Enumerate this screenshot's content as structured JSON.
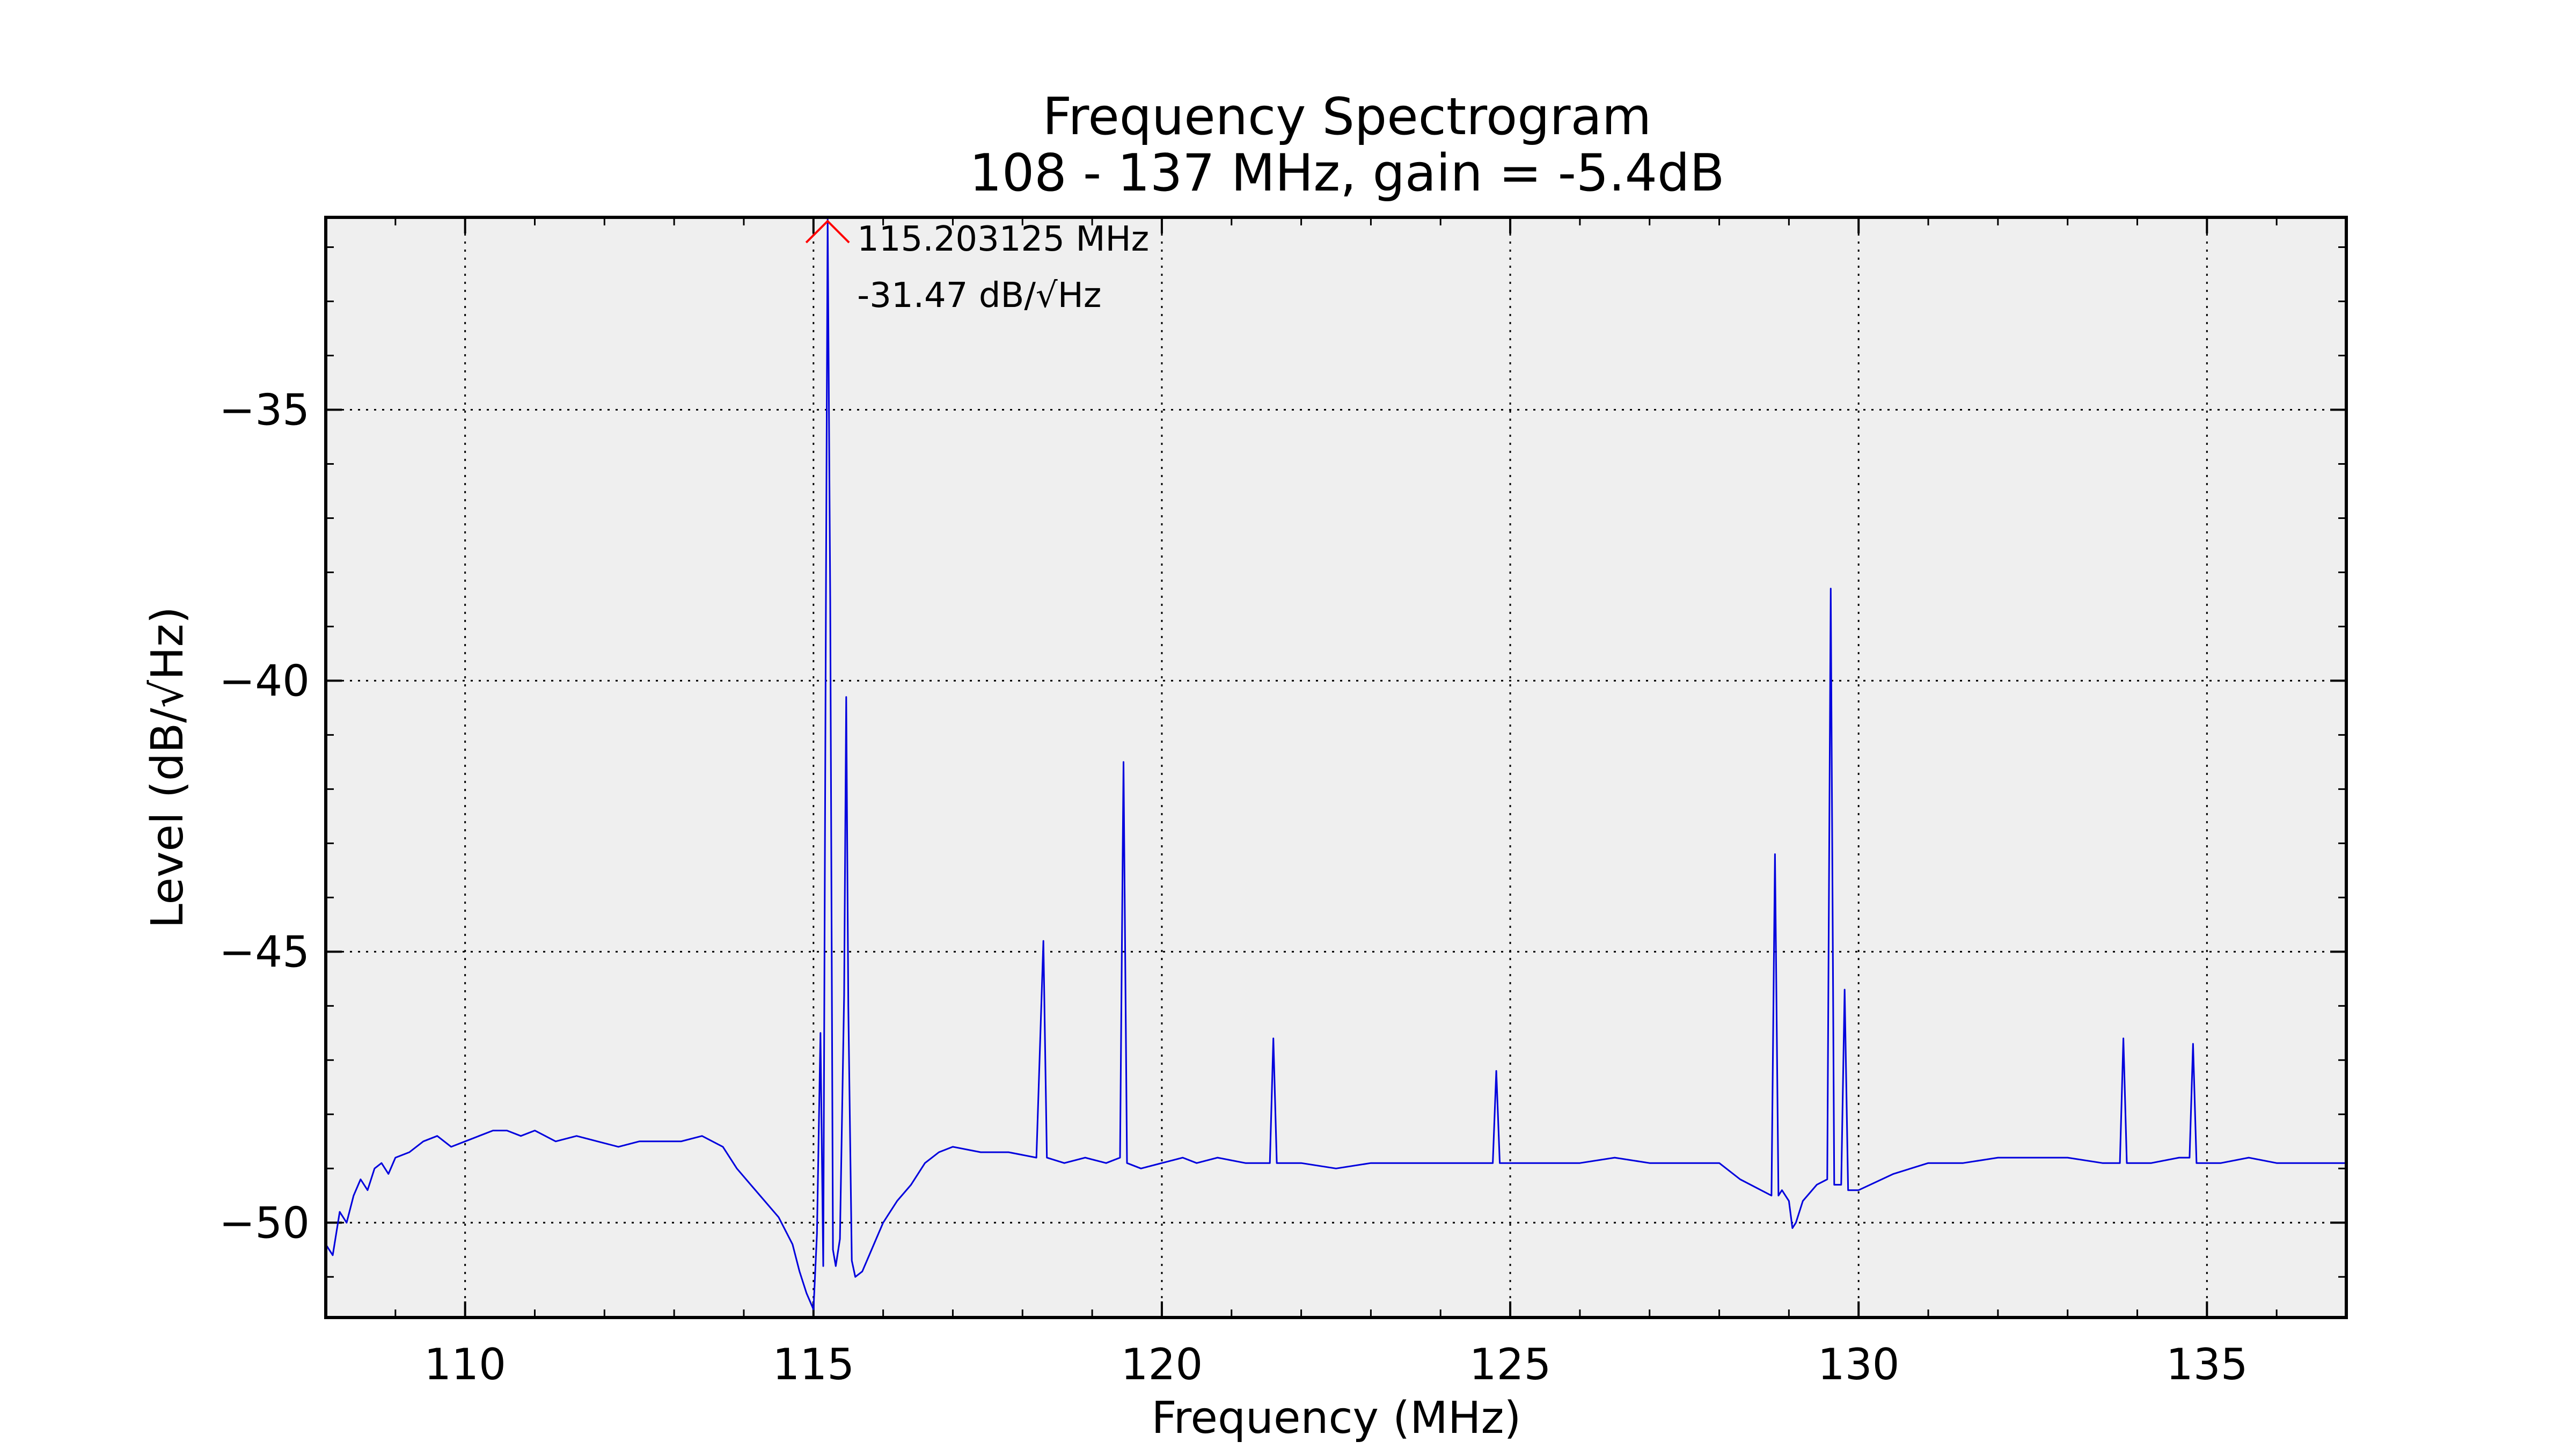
{
  "chart_data": {
    "type": "line",
    "title": "Frequency Spectrogram",
    "subtitle": "108 - 137 MHz, gain = -5.4dB",
    "xlabel": "Frequency (MHz)",
    "ylabel": "Level (dB/√Hz)",
    "xlim": [
      108,
      137
    ],
    "ylim": [
      -51.75,
      -31.45
    ],
    "xticks": [
      110,
      115,
      120,
      125,
      130,
      135
    ],
    "xtick_labels": [
      "110",
      "115",
      "120",
      "125",
      "130",
      "135"
    ],
    "yticks": [
      -35,
      -40,
      -45,
      -50
    ],
    "ytick_labels": [
      "−35",
      "−40",
      "−45",
      "−50"
    ],
    "grid": true,
    "background": "#efefef",
    "line_color": "#0000dd",
    "marker_color": "#ff0000",
    "peak_marker": {
      "x": 115.203125,
      "y": -31.47,
      "label_freq": "115.203125 MHz",
      "label_level": "-31.47 dB/√Hz"
    },
    "series": [
      {
        "points": [
          [
            108.0,
            -50.4
          ],
          [
            108.1,
            -50.6
          ],
          [
            108.2,
            -49.8
          ],
          [
            108.3,
            -50.0
          ],
          [
            108.4,
            -49.5
          ],
          [
            108.5,
            -49.2
          ],
          [
            108.6,
            -49.4
          ],
          [
            108.7,
            -49.0
          ],
          [
            108.8,
            -48.9
          ],
          [
            108.9,
            -49.1
          ],
          [
            109.0,
            -48.8
          ],
          [
            109.2,
            -48.7
          ],
          [
            109.4,
            -48.5
          ],
          [
            109.6,
            -48.4
          ],
          [
            109.8,
            -48.6
          ],
          [
            110.0,
            -48.5
          ],
          [
            110.2,
            -48.4
          ],
          [
            110.4,
            -48.3
          ],
          [
            110.6,
            -48.3
          ],
          [
            110.8,
            -48.4
          ],
          [
            111.0,
            -48.3
          ],
          [
            111.3,
            -48.5
          ],
          [
            111.6,
            -48.4
          ],
          [
            111.9,
            -48.5
          ],
          [
            112.2,
            -48.6
          ],
          [
            112.5,
            -48.5
          ],
          [
            112.8,
            -48.5
          ],
          [
            113.1,
            -48.5
          ],
          [
            113.4,
            -48.4
          ],
          [
            113.7,
            -48.6
          ],
          [
            113.9,
            -49.0
          ],
          [
            114.1,
            -49.3
          ],
          [
            114.3,
            -49.6
          ],
          [
            114.5,
            -49.9
          ],
          [
            114.7,
            -50.4
          ],
          [
            114.8,
            -50.9
          ],
          [
            114.9,
            -51.3
          ],
          [
            115.0,
            -51.6
          ],
          [
            115.05,
            -50.2
          ],
          [
            115.1,
            -46.5
          ],
          [
            115.14,
            -50.8
          ],
          [
            115.18,
            -38.0
          ],
          [
            115.2031,
            -31.47
          ],
          [
            115.24,
            -38.5
          ],
          [
            115.28,
            -50.5
          ],
          [
            115.32,
            -50.8
          ],
          [
            115.38,
            -50.3
          ],
          [
            115.44,
            -45.8
          ],
          [
            115.47,
            -40.3
          ],
          [
            115.5,
            -46.0
          ],
          [
            115.55,
            -50.7
          ],
          [
            115.6,
            -51.0
          ],
          [
            115.7,
            -50.9
          ],
          [
            115.8,
            -50.6
          ],
          [
            115.9,
            -50.3
          ],
          [
            116.0,
            -50.0
          ],
          [
            116.2,
            -49.6
          ],
          [
            116.4,
            -49.3
          ],
          [
            116.6,
            -48.9
          ],
          [
            116.8,
            -48.7
          ],
          [
            117.0,
            -48.6
          ],
          [
            117.4,
            -48.7
          ],
          [
            117.8,
            -48.7
          ],
          [
            118.2,
            -48.8
          ],
          [
            118.3,
            -44.8
          ],
          [
            118.35,
            -48.8
          ],
          [
            118.6,
            -48.9
          ],
          [
            118.9,
            -48.8
          ],
          [
            119.2,
            -48.9
          ],
          [
            119.4,
            -48.8
          ],
          [
            119.45,
            -41.5
          ],
          [
            119.5,
            -48.9
          ],
          [
            119.7,
            -49.0
          ],
          [
            120.0,
            -48.9
          ],
          [
            120.3,
            -48.8
          ],
          [
            120.5,
            -48.9
          ],
          [
            120.8,
            -48.8
          ],
          [
            121.2,
            -48.9
          ],
          [
            121.55,
            -48.9
          ],
          [
            121.6,
            -46.6
          ],
          [
            121.65,
            -48.9
          ],
          [
            122.0,
            -48.9
          ],
          [
            122.5,
            -49.0
          ],
          [
            123.0,
            -48.9
          ],
          [
            123.5,
            -48.9
          ],
          [
            124.0,
            -48.9
          ],
          [
            124.5,
            -48.9
          ],
          [
            124.75,
            -48.9
          ],
          [
            124.8,
            -47.2
          ],
          [
            124.85,
            -48.9
          ],
          [
            125.2,
            -48.9
          ],
          [
            125.6,
            -48.9
          ],
          [
            126.0,
            -48.9
          ],
          [
            126.5,
            -48.8
          ],
          [
            127.0,
            -48.9
          ],
          [
            127.5,
            -48.9
          ],
          [
            128.0,
            -48.9
          ],
          [
            128.3,
            -49.2
          ],
          [
            128.6,
            -49.4
          ],
          [
            128.75,
            -49.5
          ],
          [
            128.8,
            -43.2
          ],
          [
            128.85,
            -49.5
          ],
          [
            128.9,
            -49.4
          ],
          [
            129.0,
            -49.6
          ],
          [
            129.05,
            -50.1
          ],
          [
            129.1,
            -50.0
          ],
          [
            129.2,
            -49.6
          ],
          [
            129.4,
            -49.3
          ],
          [
            129.55,
            -49.2
          ],
          [
            129.6,
            -38.3
          ],
          [
            129.65,
            -49.3
          ],
          [
            129.75,
            -49.3
          ],
          [
            129.8,
            -45.7
          ],
          [
            129.85,
            -49.4
          ],
          [
            130.0,
            -49.4
          ],
          [
            130.5,
            -49.1
          ],
          [
            131.0,
            -48.9
          ],
          [
            131.5,
            -48.9
          ],
          [
            132.0,
            -48.8
          ],
          [
            132.5,
            -48.8
          ],
          [
            133.0,
            -48.8
          ],
          [
            133.5,
            -48.9
          ],
          [
            133.75,
            -48.9
          ],
          [
            133.8,
            -46.6
          ],
          [
            133.85,
            -48.9
          ],
          [
            134.2,
            -48.9
          ],
          [
            134.6,
            -48.8
          ],
          [
            134.75,
            -48.8
          ],
          [
            134.8,
            -46.7
          ],
          [
            134.85,
            -48.9
          ],
          [
            135.2,
            -48.9
          ],
          [
            135.6,
            -48.8
          ],
          [
            136.0,
            -48.9
          ],
          [
            136.4,
            -48.9
          ],
          [
            136.8,
            -48.9
          ],
          [
            137.0,
            -48.9
          ]
        ]
      }
    ]
  }
}
